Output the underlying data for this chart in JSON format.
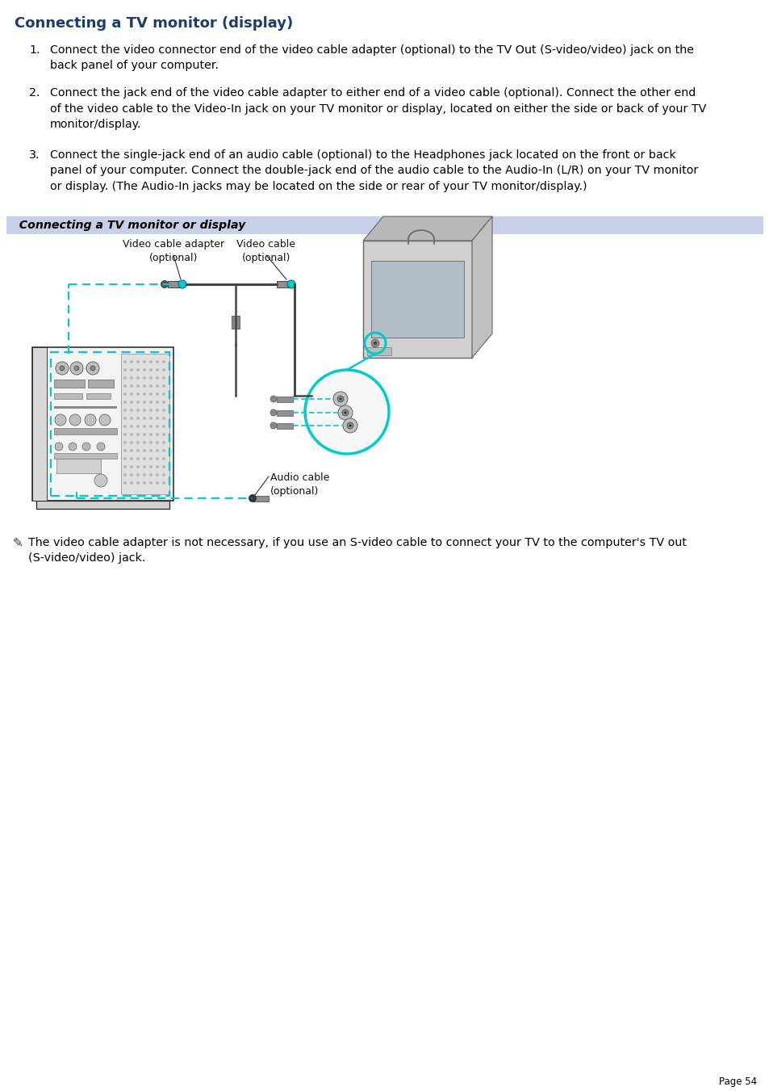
{
  "title": "Connecting a TV monitor (display)",
  "title_color": "#1a3c6e",
  "background_color": "#ffffff",
  "section_banner_color": "#c8cfe8",
  "section_banner_text": "  Connecting a TV monitor or display",
  "body_fontsize": 10.3,
  "body_color": "#000000",
  "item1": "Connect the video connector end of the video cable adapter (optional) to the TV Out (S-video/video) jack on the\nback panel of your computer.",
  "item2": "Connect the jack end of the video cable adapter to either end of a video cable (optional). Connect the other end\nof the video cable to the Video-In jack on your TV monitor or display, located on either the side or back of your TV\nmonitor/display.",
  "item3": "Connect the single-jack end of an audio cable (optional) to the Headphones jack located on the front or back\npanel of your computer. Connect the double-jack end of the audio cable to the Audio-In (L/R) on your TV monitor\nor display. (The Audio-In jacks may be located on the side or rear of your TV monitor/display.)",
  "note_text": "The video cable adapter is not necessary, if you use an S-video cable to connect your TV to the computer's TV out\n(S-video/video) jack.",
  "page_number": "Page 54",
  "label_video_adapter": "Video cable adapter\n(optional)",
  "label_video_cable": "Video cable\n(optional)",
  "label_audio_cable": "Audio cable\n(optional)",
  "cyan": "#00cccc",
  "dark": "#222222",
  "gray_light": "#e8e8e8",
  "gray_mid": "#aaaaaa",
  "gray_dark": "#666666"
}
